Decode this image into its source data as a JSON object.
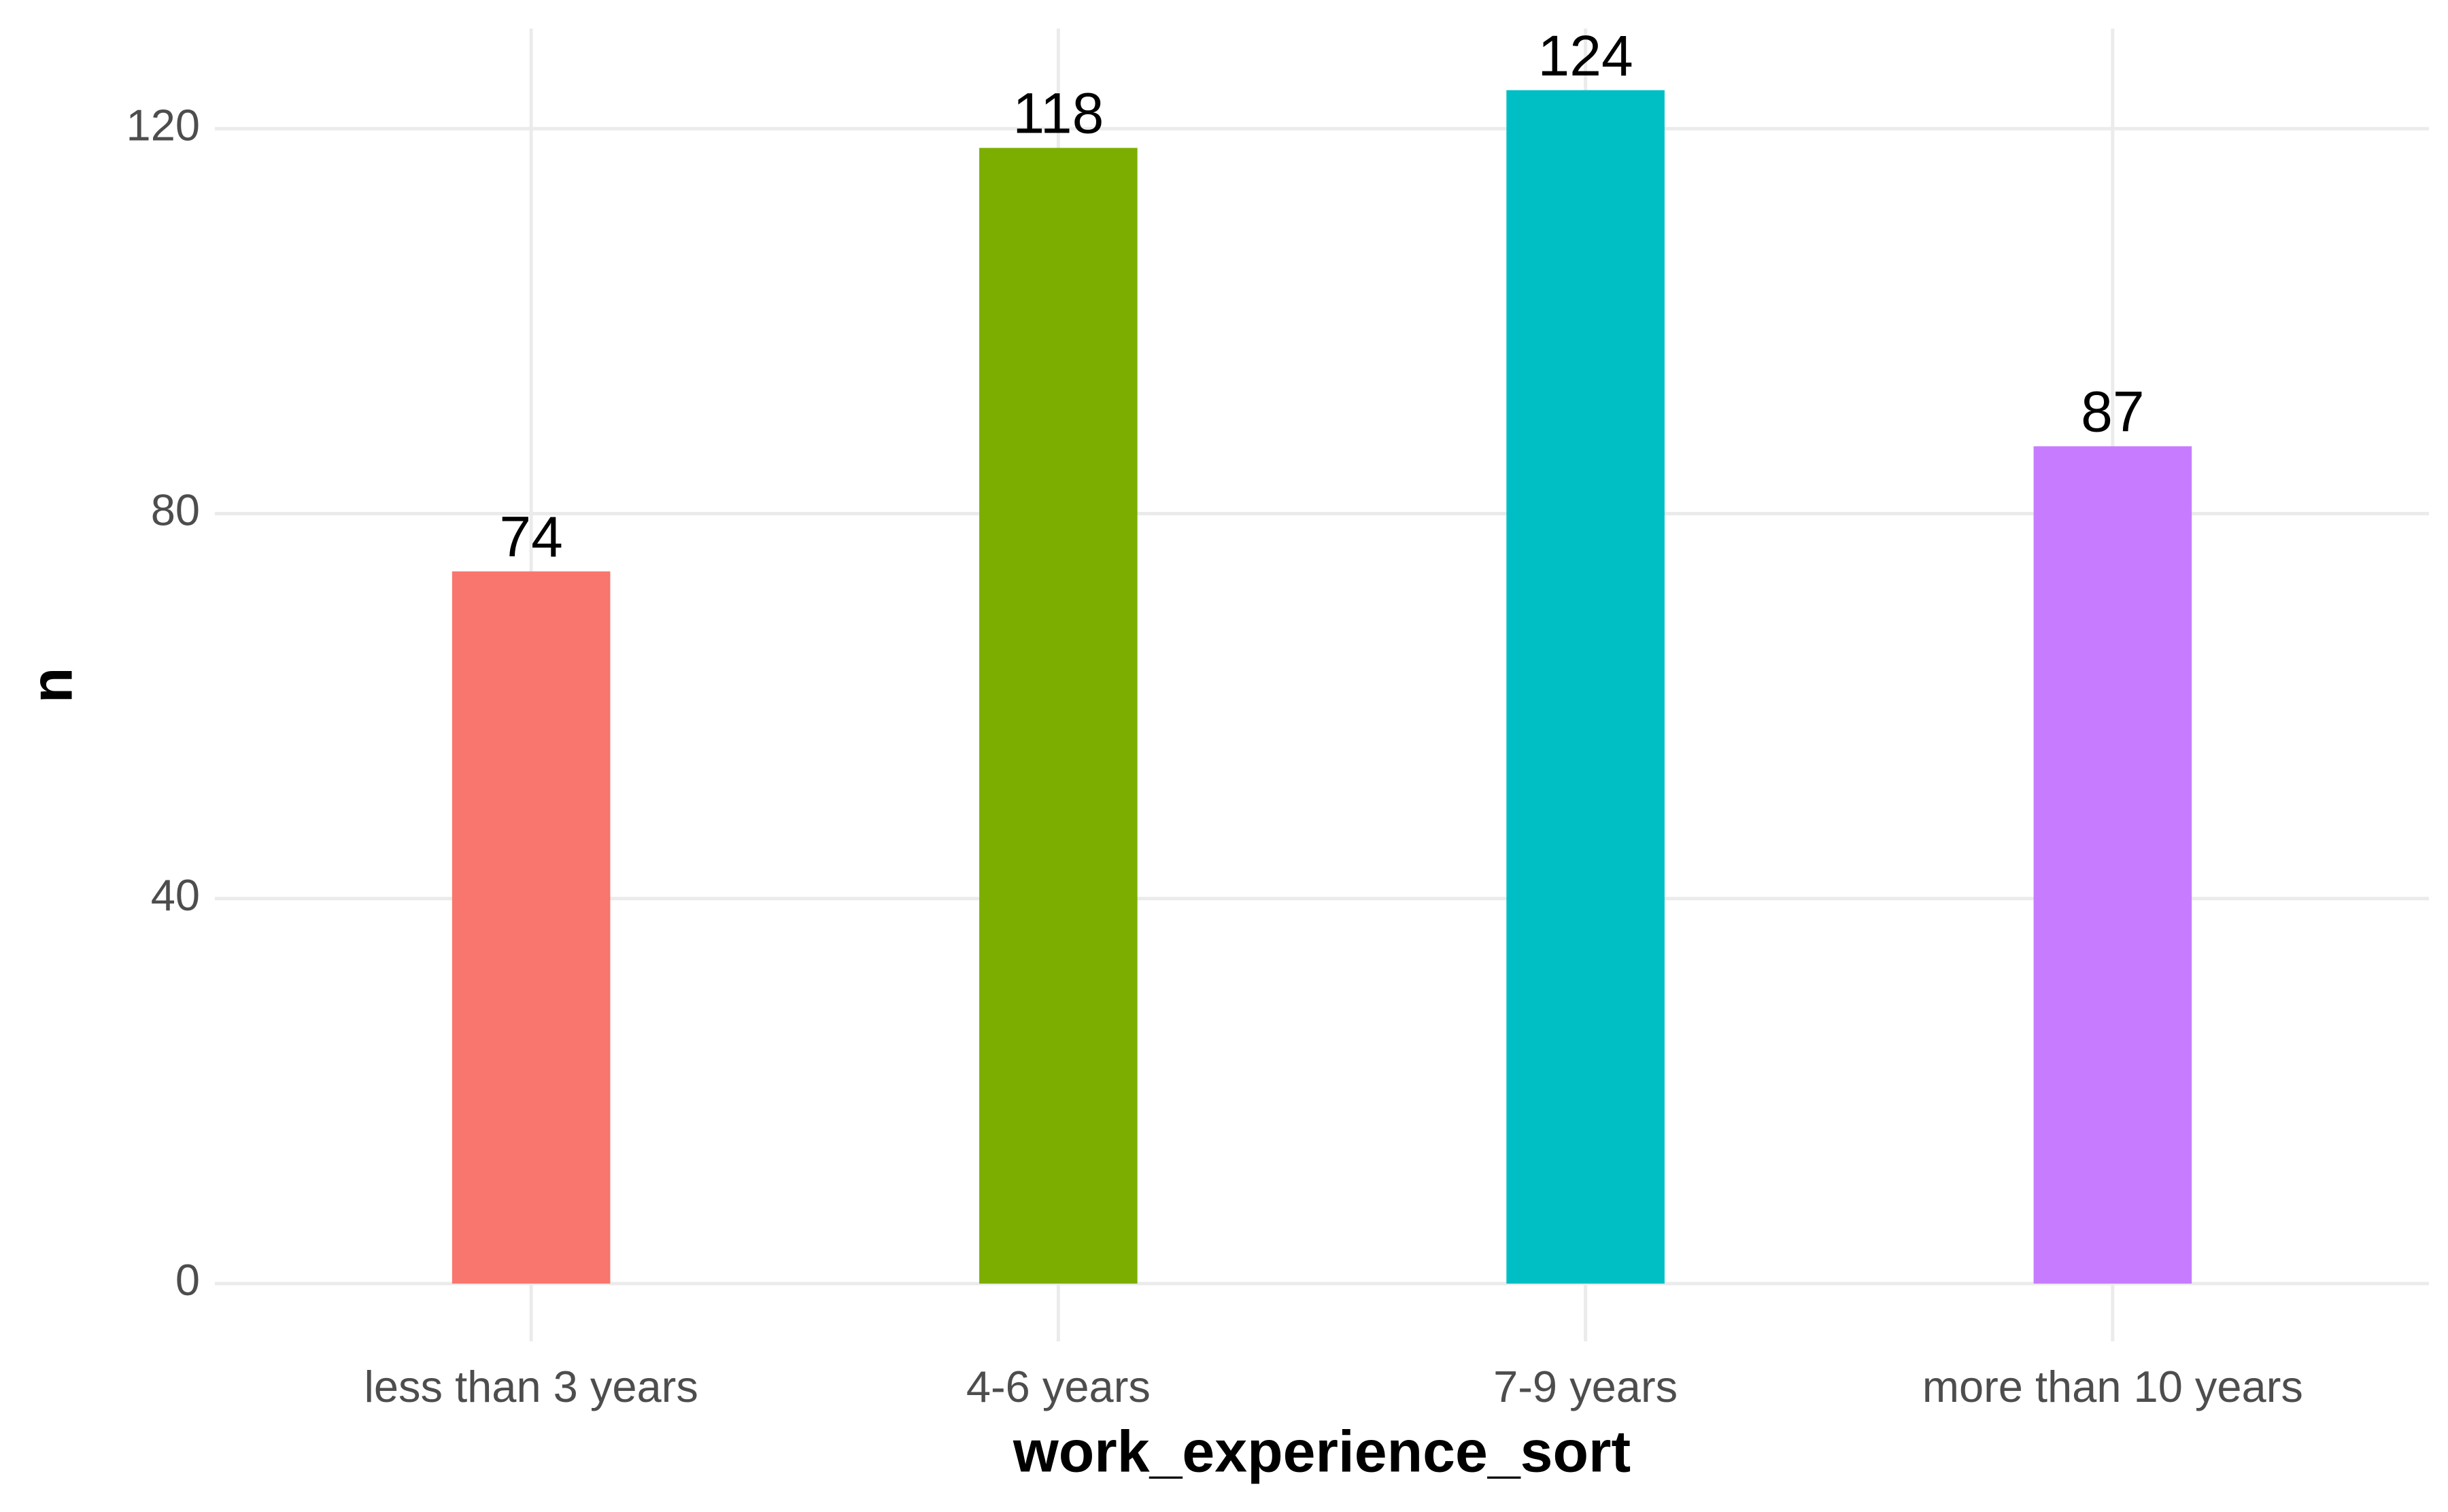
{
  "chart_data": {
    "type": "bar",
    "x_label": "work_experience_sort",
    "y_label": "n",
    "categories": [
      "less than 3 years",
      "4-6 years",
      "7-9 years",
      "more than 10 years"
    ],
    "values": [
      74,
      118,
      124,
      87
    ],
    "colors": [
      "#f8766d",
      "#7cae00",
      "#00bfc4",
      "#c77cff"
    ],
    "ylim": [
      -6,
      130.4
    ],
    "yticks": [
      0,
      40,
      80,
      120
    ],
    "grid": true
  }
}
